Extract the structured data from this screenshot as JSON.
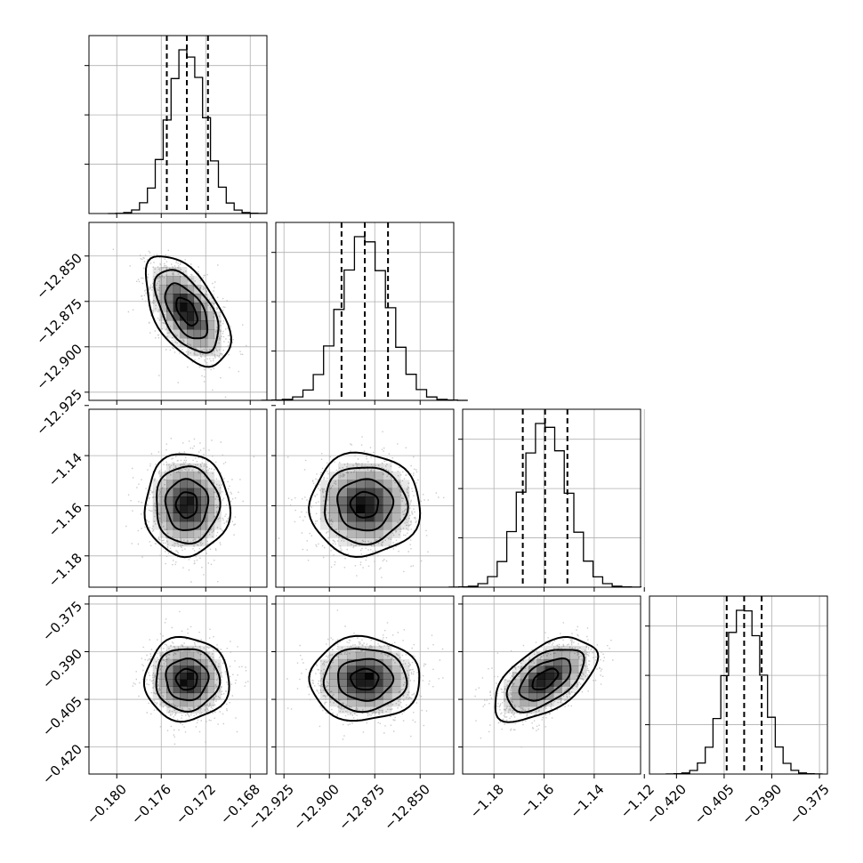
{
  "chart_data": {
    "type": "corner",
    "grid": true,
    "parameters": [
      {
        "center": -0.1737,
        "sigma": 0.00165,
        "q": [
          -0.1755,
          -0.1737,
          -0.1718
        ],
        "lim": [
          -0.1825,
          -0.1665
        ],
        "ticks": [
          -0.18,
          -0.176,
          -0.172,
          -0.168
        ],
        "tick_labels": [
          "−0.180",
          "−0.176",
          "−0.172",
          "−0.168"
        ]
      },
      {
        "center": -12.8805,
        "sigma": 0.0132,
        "q": [
          -12.8933,
          -12.8805,
          -12.8677
        ],
        "lim": [
          -12.9295,
          -12.8315
        ],
        "ticks": [
          -12.925,
          -12.9,
          -12.875,
          -12.85
        ],
        "tick_labels": [
          "−12.925",
          "−12.900",
          "−12.875",
          "−12.850"
        ]
      },
      {
        "center": -1.1596,
        "sigma": 0.0089,
        "q": [
          -1.1685,
          -1.1596,
          -1.1507
        ],
        "lim": [
          -1.1925,
          -1.1215
        ],
        "ticks": [
          -1.18,
          -1.16,
          -1.14,
          -1.12
        ],
        "tick_labels": [
          "−1.18",
          "−1.16",
          "−1.14",
          "−1.12"
        ]
      },
      {
        "center": -0.3987,
        "sigma": 0.0057,
        "q": [
          -0.4042,
          -0.3987,
          -0.3932
        ],
        "lim": [
          -0.4285,
          -0.3725
        ],
        "ticks": [
          -0.42,
          -0.405,
          -0.39,
          -0.375
        ],
        "tick_labels": [
          "−0.420",
          "−0.405",
          "−0.390",
          "−0.375"
        ]
      }
    ],
    "correlations": {
      "1-0": -0.55,
      "2-0": 0.0,
      "2-1": 0.0,
      "3-0": 0.0,
      "3-1": 0.0,
      "3-2": 0.55
    },
    "hist_bins": 20,
    "contour_levels_sigma": [
      0.5,
      1.0,
      1.5,
      2.0
    ],
    "colors": {
      "points": "#b8b8b8",
      "density": "#000000",
      "lines": "#000000",
      "grid": "#b0b0b0"
    }
  }
}
